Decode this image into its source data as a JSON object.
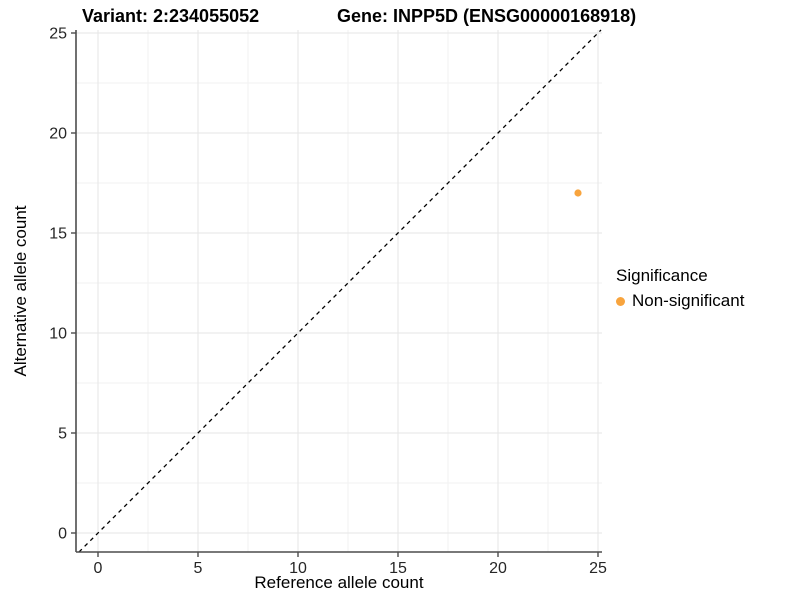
{
  "page": {
    "background": "#FFFFFF"
  },
  "chart_data": {
    "type": "scatter",
    "titles": {
      "left": "Variant: 2:234055052",
      "right": "Gene: INPP5D (ENSG00000168918)"
    },
    "xlabel": "Reference allele count",
    "ylabel": "Alternative allele count",
    "xlim": [
      -1.1,
      25.2
    ],
    "ylim": [
      -0.95,
      25.15
    ],
    "xticks": [
      0,
      5,
      10,
      15,
      20,
      25
    ],
    "yticks": [
      0,
      5,
      10,
      15,
      20,
      25
    ],
    "minor_ticks_x": [
      2.5,
      7.5,
      12.5,
      17.5,
      22.5
    ],
    "minor_ticks_y": [
      2.5,
      7.5,
      12.5,
      17.5,
      22.5
    ],
    "grid": "on",
    "series": [
      {
        "name": "Non-significant",
        "color": "#F8A43D",
        "points": [
          {
            "x": 24,
            "y": 17
          }
        ]
      }
    ],
    "identity_line": {
      "slope": 1,
      "intercept": 0,
      "style": "dashed",
      "color": "#000000"
    },
    "legend": {
      "title": "Significance",
      "position": "right",
      "items": [
        {
          "label": "Non-significant",
          "color": "#F8A43D"
        }
      ]
    },
    "colors": {
      "grid_major": "#E6E6E6",
      "grid_minor": "#F2F2F2",
      "axis_line": "#4D4D4D",
      "tick_text": "#262626",
      "title_text": "#000000"
    }
  }
}
